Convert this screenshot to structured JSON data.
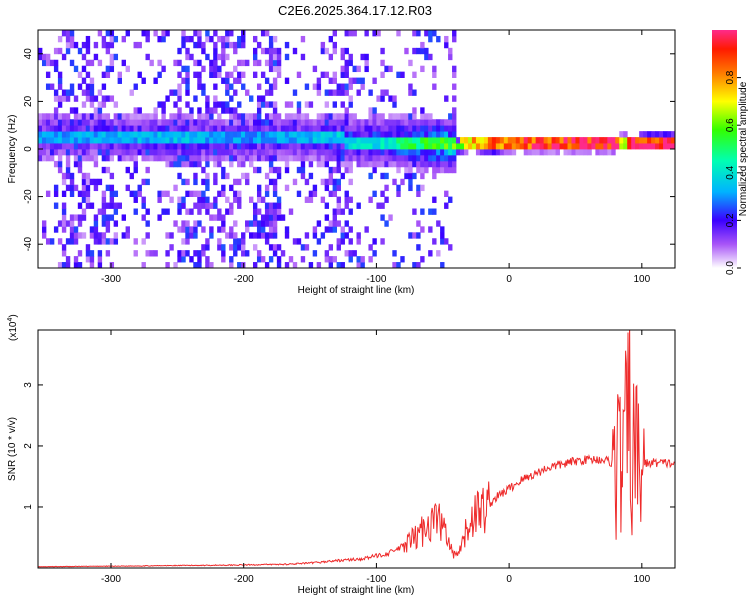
{
  "title": "C2E6.2025.364.17.12.R03",
  "chart_data": [
    {
      "type": "heatmap",
      "xlabel": "Height of straight line (km)",
      "ylabel": "Frequency (Hz)",
      "xlim": [
        -355,
        125
      ],
      "ylim": [
        -50,
        50
      ],
      "xticks": [
        -300,
        -200,
        -100,
        0,
        100
      ],
      "yticks": [
        -40,
        -20,
        0,
        20,
        40
      ],
      "colorbar": {
        "label": "Normalized spectral amplitude",
        "range": [
          0,
          1
        ],
        "ticks": [
          "0.0",
          "0.2",
          "0.4",
          "0.6",
          "0.8"
        ],
        "tick_values": [
          0,
          0.2,
          0.4,
          0.6,
          0.8
        ]
      },
      "signal_track": {
        "x": [
          -355,
          -300,
          -250,
          -200,
          -150,
          -100,
          -60,
          -40,
          -30,
          -20,
          0,
          40,
          80,
          85,
          90,
          100,
          125
        ],
        "center_freq": [
          4,
          4,
          3,
          3,
          3,
          2,
          1,
          0,
          1,
          0,
          1,
          1,
          1,
          2,
          1,
          2,
          2
        ],
        "amplitude": [
          0.3,
          0.32,
          0.34,
          0.3,
          0.33,
          0.4,
          0.55,
          0.62,
          0.72,
          0.8,
          0.88,
          0.93,
          0.96,
          0.6,
          0.9,
          0.95,
          0.96
        ]
      }
    },
    {
      "type": "line",
      "xlabel": "Height of straight line (km)",
      "ylabel": "SNR (10 * v/v)",
      "y_multiplier_label": "(x10",
      "y_multiplier_exp": "4",
      "y_multiplier_close": ")",
      "xlim": [
        -355,
        125
      ],
      "ylim": [
        0,
        3.9
      ],
      "xticks": [
        -300,
        -200,
        -100,
        0,
        100
      ],
      "yticks": [
        1,
        2,
        3
      ],
      "line_color": "#ee2a2a",
      "series": [
        {
          "x": [
            -355,
            -300,
            -250,
            -200,
            -170,
            -150,
            -130,
            -110,
            -90,
            -80,
            -70,
            -60,
            -55,
            -50,
            -45,
            -40,
            -35,
            -30,
            -25,
            -20,
            -15,
            -10,
            0,
            10,
            20,
            30,
            40,
            50,
            60,
            70,
            75,
            80,
            85,
            88,
            90,
            92,
            95,
            100,
            105,
            110,
            115,
            120,
            125
          ],
          "y": [
            0.02,
            0.03,
            0.04,
            0.05,
            0.06,
            0.08,
            0.12,
            0.15,
            0.25,
            0.35,
            0.5,
            0.75,
            0.8,
            0.7,
            0.35,
            0.15,
            0.4,
            0.75,
            0.9,
            0.95,
            1.05,
            1.15,
            1.3,
            1.45,
            1.55,
            1.65,
            1.7,
            1.75,
            1.78,
            1.78,
            1.75,
            1.7,
            1.8,
            2.0,
            2.6,
            2.0,
            1.8,
            1.7,
            1.72,
            1.73,
            1.72,
            1.72,
            1.7
          ]
        }
      ]
    }
  ]
}
